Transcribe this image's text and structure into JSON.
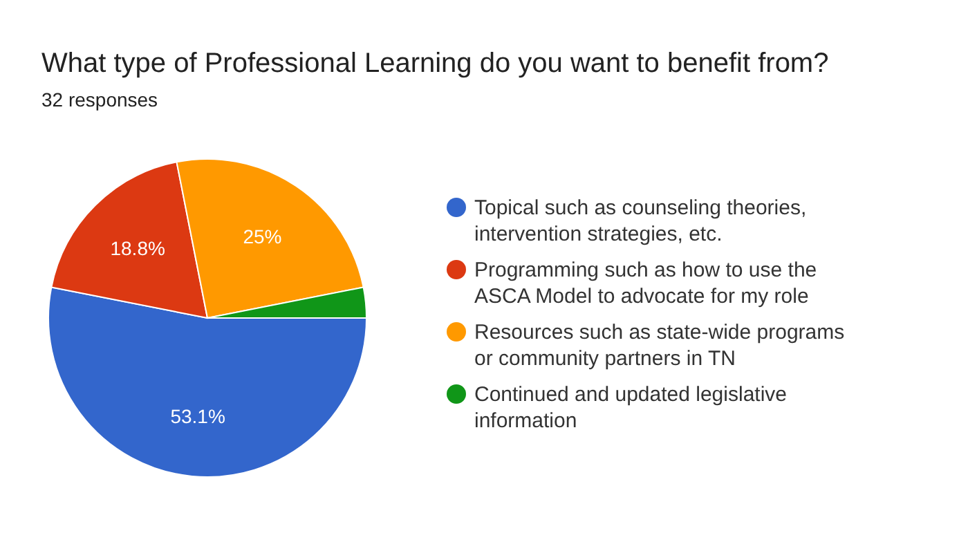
{
  "chart_data": {
    "type": "pie",
    "title": "What type of Professional Learning do you want to benefit from?",
    "subtitle": "32 responses",
    "categories": [
      "Topical such as counseling theories, intervention strategies, etc.",
      "Programming such as how to use the ASCA Model to advocate for my role",
      "Resources such as state-wide programs or community partners in TN",
      "Continued and updated legislative information"
    ],
    "values": [
      53.1,
      18.8,
      25,
      3.1
    ],
    "colors": [
      "#3366cc",
      "#dc3912",
      "#ff9900",
      "#109618"
    ],
    "value_labels": [
      "53.1%",
      "18.8%",
      "25%",
      null
    ],
    "legend": "right"
  }
}
